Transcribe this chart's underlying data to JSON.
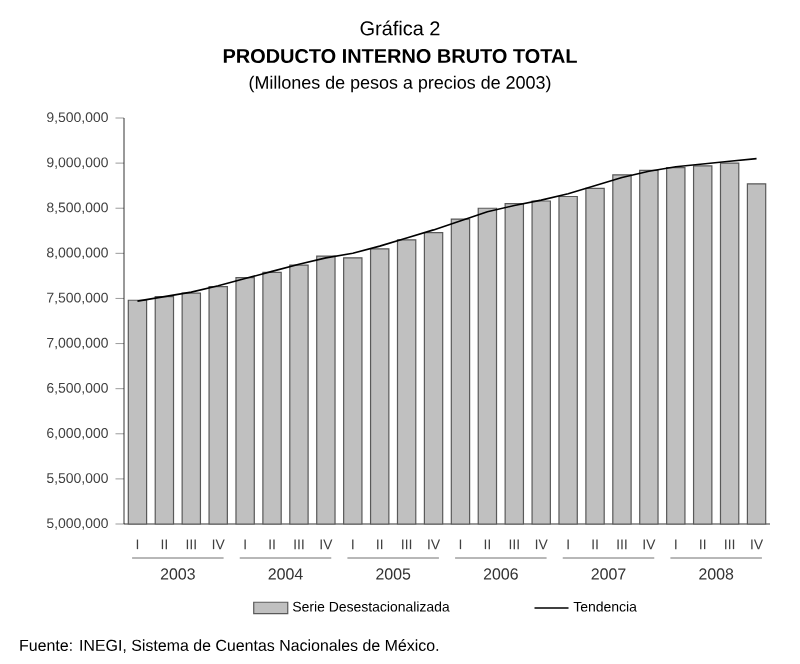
{
  "chart_data": {
    "type": "bar",
    "title": "PRODUCTO INTERNO BRUTO TOTAL",
    "subtitle": "(Millones de pesos a precios de 2003)",
    "annotations": [
      "Gráfica 2",
      "2003",
      "2004",
      "2005",
      "2006",
      "2007",
      "2008",
      "Fuente: INEGI, Sistema de Cuentas Nacionales de México."
    ],
    "categories": [
      "I",
      "II",
      "III",
      "IV",
      "I",
      "II",
      "III",
      "IV",
      "I",
      "II",
      "III",
      "IV",
      "I",
      "II",
      "III",
      "IV",
      "I",
      "II",
      "III",
      "IV",
      "I",
      "II",
      "III",
      "IV"
    ],
    "series": [
      {
        "name": "Serie Desestacionalizada",
        "color": "#c0c0c0",
        "values": [
          7480000,
          7520000,
          7560000,
          7630000,
          7730000,
          7790000,
          7870000,
          7970000,
          7950000,
          8050000,
          8150000,
          8230000,
          8380000,
          8500000,
          8550000,
          8580000,
          8630000,
          8720000,
          8870000,
          8920000,
          8950000,
          8970000,
          9000000,
          8770000
        ]
      },
      {
        "name": "Tendencia",
        "type": "line",
        "color": "#000000",
        "values": [
          7470000,
          7520000,
          7570000,
          7640000,
          7720000,
          7800000,
          7880000,
          7950000,
          8000000,
          8080000,
          8170000,
          8260000,
          8360000,
          8460000,
          8530000,
          8590000,
          8660000,
          8750000,
          8840000,
          8910000,
          8960000,
          8990000,
          9020000,
          9050000
        ]
      }
    ],
    "ylim": [
      5000000,
      9500000
    ],
    "yticks": [
      {
        "value": 5000000,
        "label": "5,000,000"
      },
      {
        "value": 5500000,
        "label": "5,500,000"
      },
      {
        "value": 6000000,
        "label": "6,000,000"
      },
      {
        "value": 6500000,
        "label": "6,500,000"
      },
      {
        "value": 7000000,
        "label": "7,000,000"
      },
      {
        "value": 7500000,
        "label": "7,500,000"
      },
      {
        "value": 8000000,
        "label": "8,000,000"
      },
      {
        "value": 8500000,
        "label": "8,500,000"
      },
      {
        "value": 9000000,
        "label": "9,000,000"
      },
      {
        "value": 9500000,
        "label": "9,500,000"
      }
    ],
    "legend": "bottom",
    "grid": false
  }
}
